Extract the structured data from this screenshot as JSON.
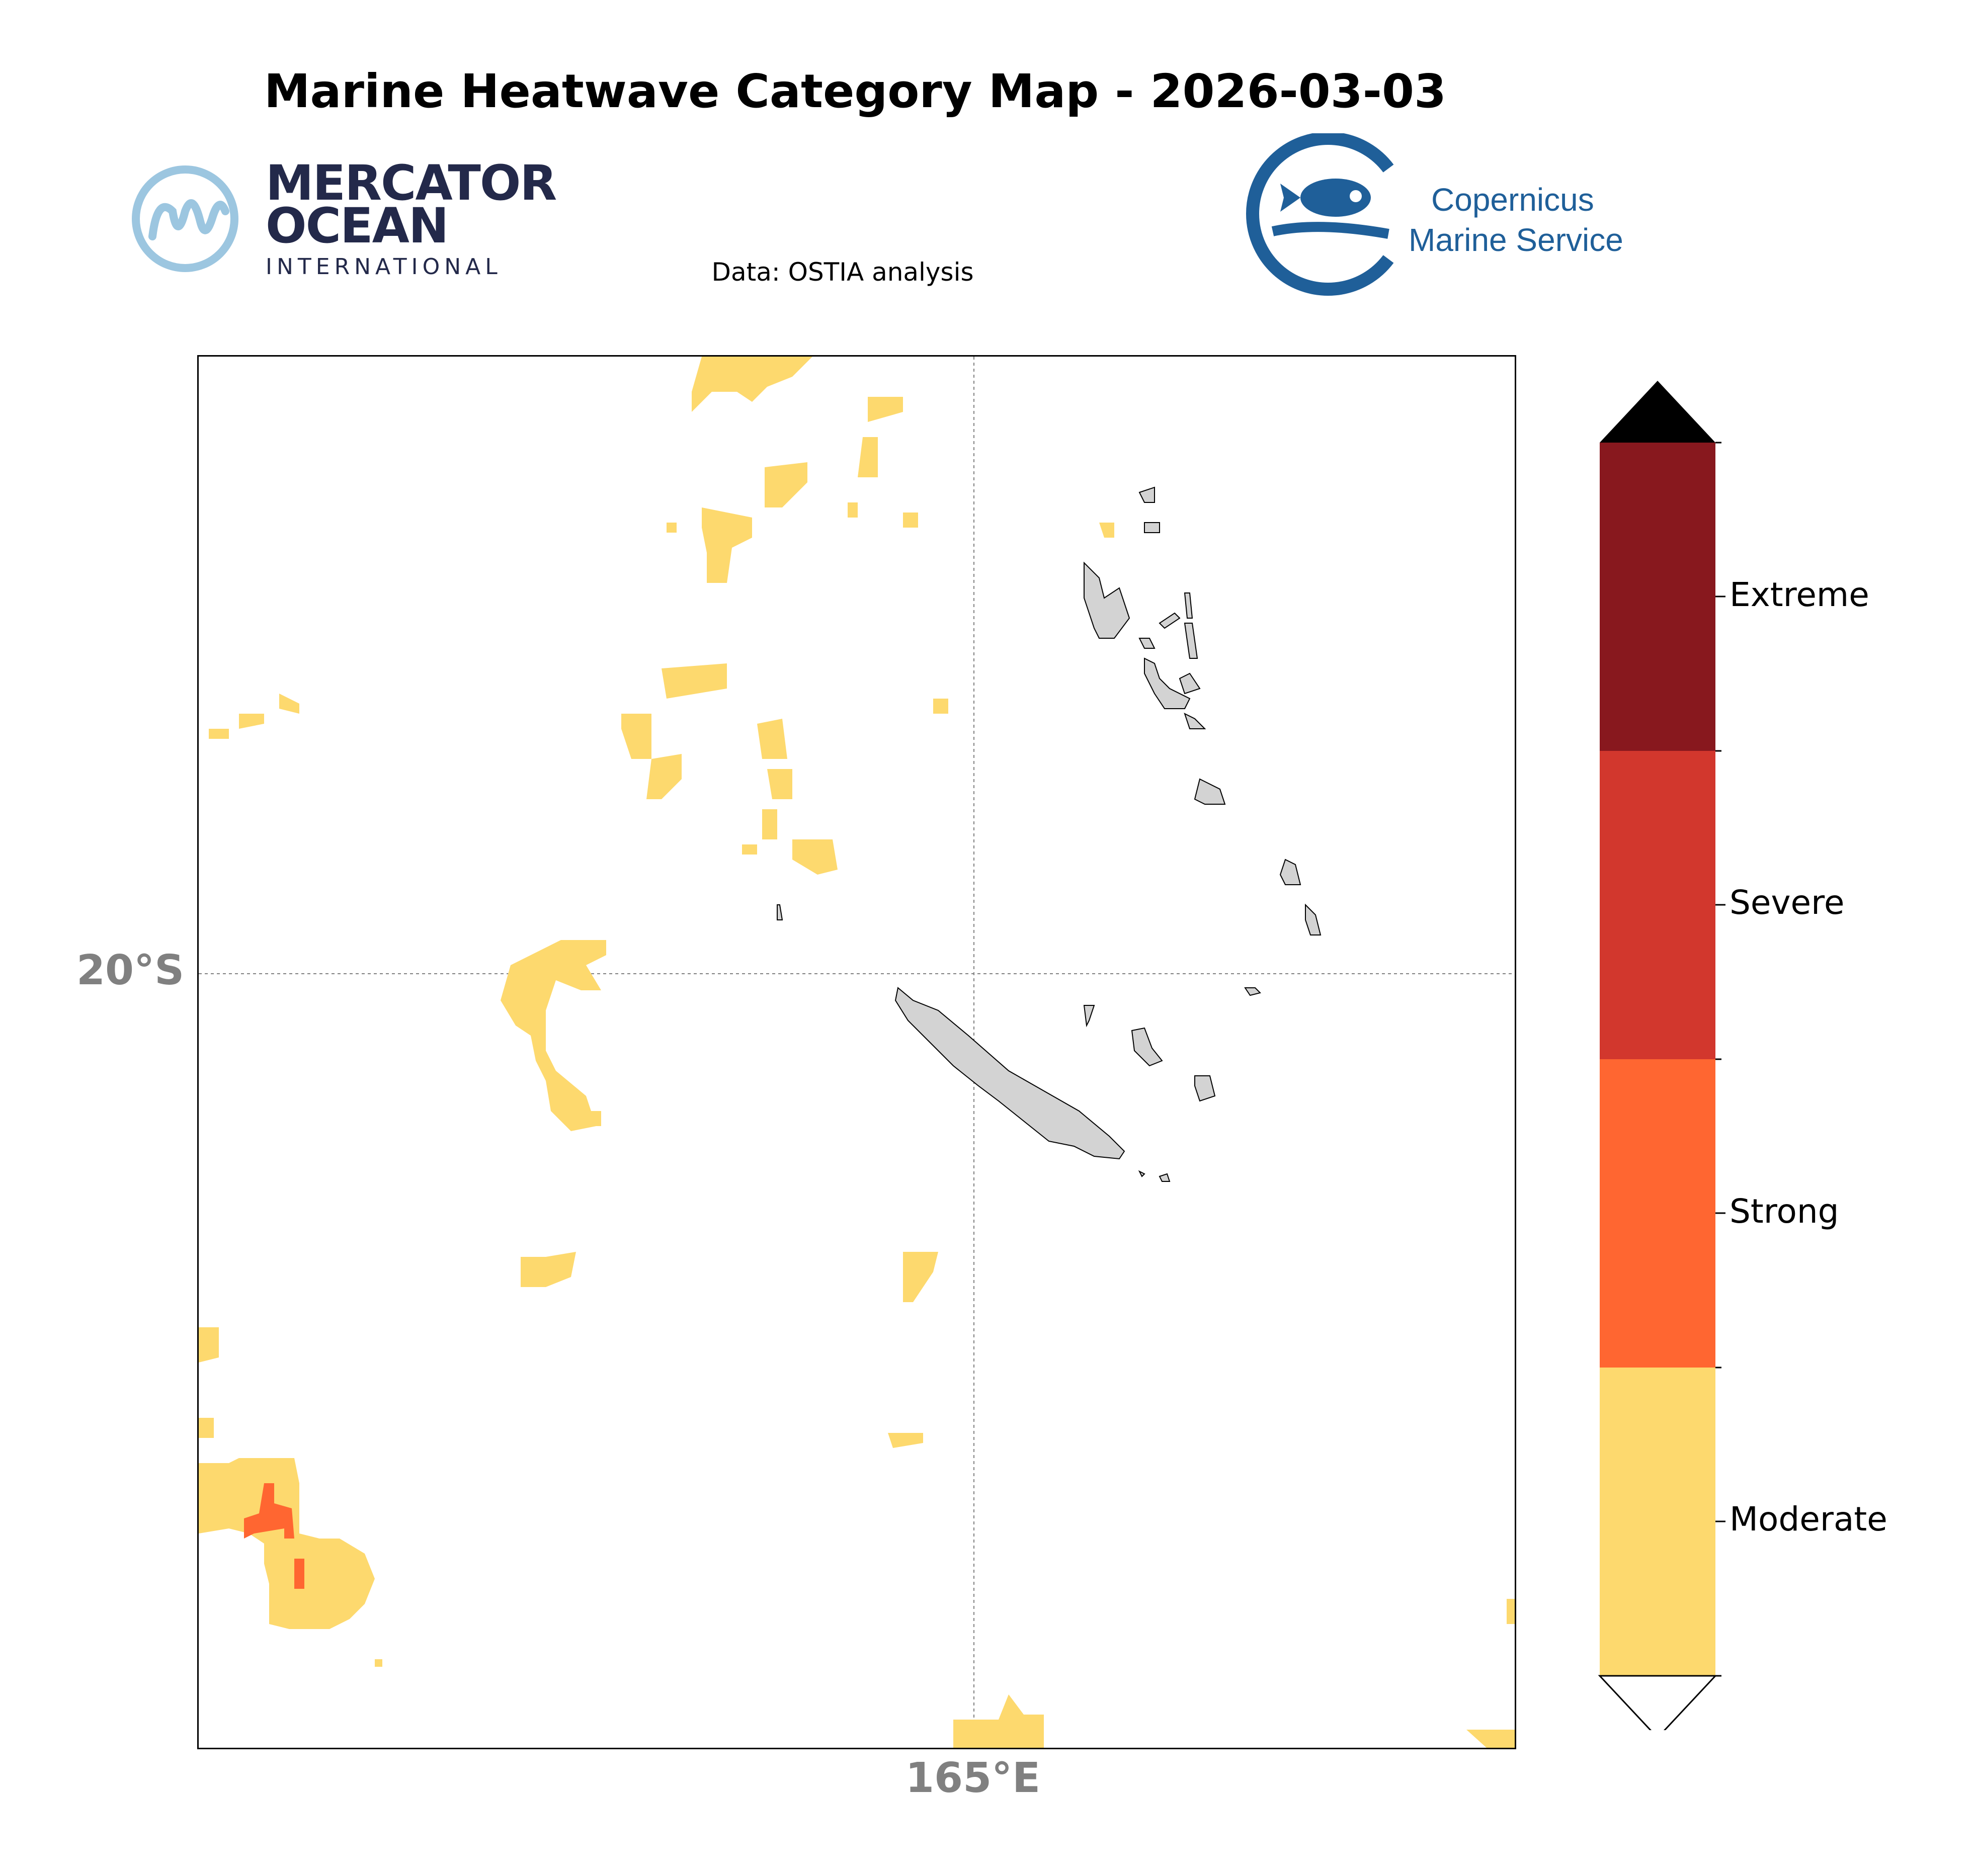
{
  "title": "Marine Heatwave Category Map - 2026-03-03",
  "subtitle": "Data: OSTIA analysis",
  "logos": {
    "mercator": {
      "line1": "MERCATOR",
      "line2": "OCEAN",
      "line3": "INTERNATIONAL",
      "color": "#23294a",
      "mark_color": "#9cc6e0"
    },
    "copernicus": {
      "line1": "Copernicus",
      "line2": "Marine Service",
      "color": "#1f5f99"
    }
  },
  "map": {
    "lat_label": "20°S",
    "lon_label": "165°E",
    "gridlines": true,
    "land_color": "#d3d3d3",
    "colors": {
      "Moderate": "#fdd96e",
      "Strong": "#ff6631",
      "Severe": "#d2372d",
      "Extreme": "#88181e"
    }
  },
  "colorbar": {
    "categories": [
      "Moderate",
      "Strong",
      "Severe",
      "Extreme"
    ],
    "colors": [
      "#fdd96e",
      "#ff6631",
      "#d2372d",
      "#88181e"
    ],
    "extend_max_color": "#000000",
    "extend_min_color": "#ffffff"
  }
}
